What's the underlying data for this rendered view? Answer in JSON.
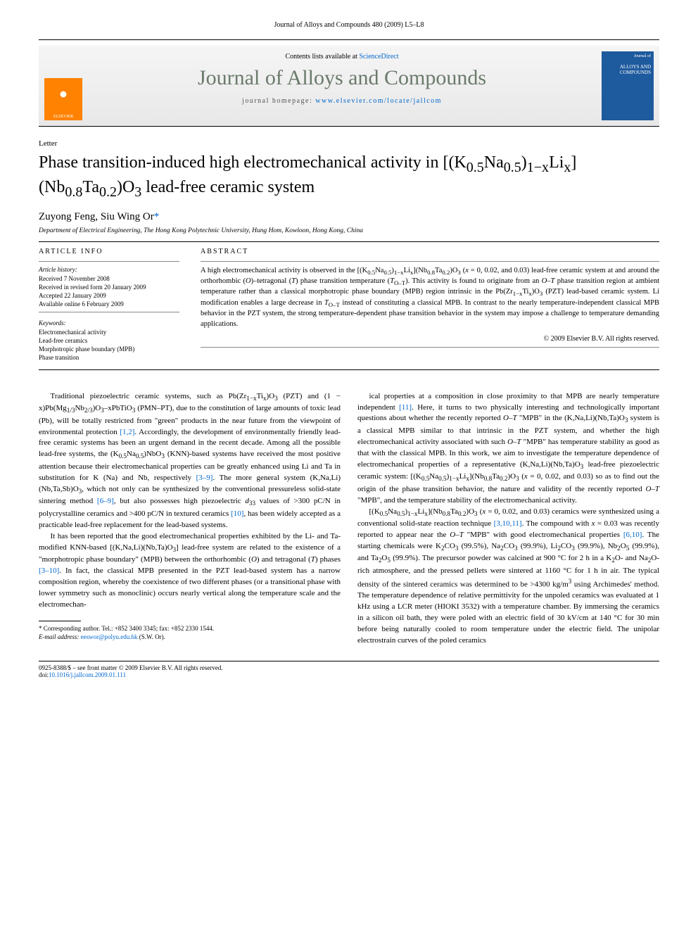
{
  "running_head": "Journal of Alloys and Compounds 480 (2009) L5–L8",
  "masthead": {
    "contents_prefix": "Contents lists available at ",
    "contents_link": "ScienceDirect",
    "journal_name": "Journal of Alloys and Compounds",
    "homepage_prefix": "journal homepage: ",
    "homepage_url": "www.elsevier.com/locate/jallcom",
    "elsevier_label": "ELSEVIER",
    "cover_small": "Journal of",
    "cover_title": "ALLOYS AND COMPOUNDS"
  },
  "letter_label": "Letter",
  "title_html": "Phase transition-induced high electromechanical activity in [(K<sub>0.5</sub>Na<sub>0.5</sub>)<sub>1−x</sub>Li<sub>x</sub>](Nb<sub>0.8</sub>Ta<sub>0.2</sub>)O<sub>3</sub> lead-free ceramic system",
  "authors_html": "Zuyong Feng, Siu Wing Or<span class=\"star\">*</span>",
  "affiliation": "Department of Electrical Engineering, The Hong Kong Polytechnic University, Hung Hom, Kowloon, Hong Kong, China",
  "article_info_head": "ARTICLE INFO",
  "abstract_head": "ABSTRACT",
  "history": {
    "label": "Article history:",
    "received": "Received 7 November 2008",
    "revised": "Received in revised form 20 January 2009",
    "accepted": "Accepted 22 January 2009",
    "online": "Available online 6 February 2009"
  },
  "keywords": {
    "label": "Keywords:",
    "items": [
      "Electromechanical activity",
      "Lead-free ceramics",
      "Morphotropic phase boundary (MPB)",
      "Phase transition"
    ]
  },
  "abstract_html": "A high electromechanical activity is observed in the [(K<sub>0.5</sub>Na<sub>0.5</sub>)<sub>1−x</sub>Li<sub>x</sub>](Nb<sub>0.8</sub>Ta<sub>0.2</sub>)O<sub>3</sub> (<i>x</i> = 0, 0.02, and 0.03) lead-free ceramic system at and around the orthorhombic (<i>O</i>)–tetragonal (<i>T</i>) phase transition temperature (<i>T</i><sub>O–T</sub>). This activity is found to originate from an <i>O–T</i> phase transition region at ambient temperature rather than a classical morphotropic phase boundary (MPB) region intrinsic in the Pb(Zr<sub>1−x</sub>Ti<sub>x</sub>)O<sub>3</sub> (PZT) lead-based ceramic system. Li modification enables a large decrease in <i>T</i><sub>O–T</sub> instead of constituting a classical MPB. In contrast to the nearly temperature-independent classical MPB behavior in the PZT system, the strong temperature-dependent phase transition behavior in the system may impose a challenge to temperature demanding applications.",
  "copyright": "© 2009 Elsevier B.V. All rights reserved.",
  "body": {
    "p1_html": "Traditional piezoelectric ceramic systems, such as Pb(Zr<sub>1−x</sub>Ti<sub>x</sub>)O<sub>3</sub> (PZT) and (1 − x)Pb(Mg<sub>1/3</sub>Nb<sub>2/3</sub>)O<sub>3</sub>–xPbTiO<sub>3</sub> (PMN–PT), due to the constitution of large amounts of toxic lead (Pb), will be totally restricted from \"green\" products in the near future from the viewpoint of environmental protection <a href=\"#\">[1,2]</a>. Accordingly, the development of environmentally friendly lead-free ceramic systems has been an urgent demand in the recent decade. Among all the possible lead-free systems, the (K<sub>0.5</sub>Na<sub>0.5</sub>)NbO<sub>3</sub> (KNN)-based systems have received the most positive attention because their electromechanical properties can be greatly enhanced using Li and Ta in substitution for K (Na) and Nb, respectively <a href=\"#\">[3–9]</a>. The more general system (K,Na,Li)(Nb,Ta,Sb)O<sub>3</sub>, which not only can be synthesized by the conventional pressureless solid-state sintering method <a href=\"#\">[6–9]</a>, but also possesses high piezoelectric <i>d</i><sub>33</sub> values of >300 pC/N in polycrystalline ceramics and >400 pC/N in textured ceramics <a href=\"#\">[10]</a>, has been widely accepted as a practicable lead-free replacement for the lead-based systems.",
    "p2_html": "It has been reported that the good electromechanical properties exhibited by the Li- and Ta-modified KNN-based [(K,Na,Li)(Nb,Ta)O<sub>3</sub>] lead-free system are related to the existence of a \"morphotropic phase boundary\" (MPB) between the orthorhombic (<i>O</i>) and tetragonal (<i>T</i>) phases <a href=\"#\">[3–10]</a>. In fact, the classical MPB presented in the PZT lead-based system has a narrow composition region, whereby the coexistence of two different phases (or a transitional phase with lower symmetry such as monoclinic) occurs nearly vertical along the temperature scale and the electromechan-",
    "p3_html": "ical properties at a composition in close proximity to that MPB are nearly temperature independent <a href=\"#\">[11]</a>. Here, it turns to two physically interesting and technologically important questions about whether the recently reported <i>O–T</i> \"MPB\" in the (K,Na,Li)(Nb,Ta)O<sub>3</sub> system is a classical MPB similar to that intrinsic in the PZT system, and whether the high electromechanical activity associated with such <i>O–T</i> \"MPB\" has temperature stability as good as that with the classical MPB. In this work, we aim to investigate the temperature dependence of electromechanical properties of a representative (K,Na,Li)(Nb,Ta)O<sub>3</sub> lead-free piezoelectric ceramic system: [(K<sub>0.5</sub>Na<sub>0.5</sub>)<sub>1−x</sub>Li<sub>x</sub>](Nb<sub>0.8</sub>Ta<sub>0.2</sub>)O<sub>3</sub> (<i>x</i> = 0, 0.02, and 0.03) so as to find out the origin of the phase transition behavior, the nature and validity of the recently reported <i>O–T</i> \"MPB\", and the temperature stability of the electromechanical activity.",
    "p4_html": "[(K<sub>0.5</sub>Na<sub>0.5</sub>)<sub>1−x</sub>Li<sub>x</sub>](Nb<sub>0.8</sub>Ta<sub>0.2</sub>)O<sub>3</sub> (<i>x</i> = 0, 0.02, and 0.03) ceramics were synthesized using a conventional solid-state reaction technique <a href=\"#\">[3,10,11]</a>. The compound with <i>x</i> = 0.03 was recently reported to appear near the <i>O–T</i> \"MPB\" with good electromechanical properties <a href=\"#\">[6,10]</a>. The starting chemicals were K<sub>2</sub>CO<sub>3</sub> (99.5%), Na<sub>2</sub>CO<sub>3</sub> (99.9%), Li<sub>2</sub>CO<sub>3</sub> (99.9%), Nb<sub>2</sub>O<sub>5</sub> (99.9%), and Ta<sub>2</sub>O<sub>5</sub> (99.9%). The precursor powder was calcined at 900 °C for 2 h in a K<sub>2</sub>O- and Na<sub>2</sub>O-rich atmosphere, and the pressed pellets were sintered at 1160 °C for 1 h in air. The typical density of the sintered ceramics was determined to be >4300 kg/m<sup>3</sup> using Archimedes' method. The temperature dependence of relative permittivity for the unpoled ceramics was evaluated at 1 kHz using a LCR meter (HIOKI 3532) with a temperature chamber. By immersing the ceramics in a silicon oil bath, they were poled with an electric field of 30 kV/cm at 140 °C for 30 min before being naturally cooled to room temperature under the electric field. The unipolar electrostrain curves of the poled ceramics"
  },
  "footnote": {
    "corr_label": "* Corresponding author. Tel.: +852 3400 3345; fax: +852 2330 1544.",
    "email_label": "E-mail address:",
    "email": "eeswor@polyu.edu.hk",
    "email_who": "(S.W. Or)."
  },
  "footer": {
    "left_line1": "0925-8388/$ – see front matter © 2009 Elsevier B.V. All rights reserved.",
    "left_line2_prefix": "doi:",
    "doi": "10.1016/j.jallcom.2009.01.111"
  },
  "colors": {
    "link": "#0066cc",
    "elsevier_orange": "#ff8200",
    "journal_green": "#6b7a6b",
    "cover_blue": "#1e5a9e"
  }
}
